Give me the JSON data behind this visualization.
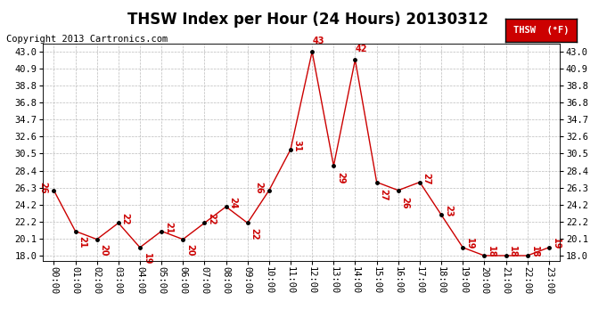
{
  "title": "THSW Index per Hour (24 Hours) 20130312",
  "copyright": "Copyright 2013 Cartronics.com",
  "legend_label": "THSW  (°F)",
  "x_labels": [
    "00:00",
    "01:00",
    "02:00",
    "03:00",
    "04:00",
    "05:00",
    "06:00",
    "07:00",
    "08:00",
    "09:00",
    "10:00",
    "11:00",
    "12:00",
    "13:00",
    "14:00",
    "15:00",
    "16:00",
    "17:00",
    "18:00",
    "19:00",
    "20:00",
    "21:00",
    "22:00",
    "23:00"
  ],
  "y_values": [
    26,
    21,
    20,
    22,
    19,
    21,
    20,
    22,
    24,
    22,
    26,
    31,
    43,
    29,
    42,
    27,
    26,
    27,
    23,
    19,
    18,
    18,
    18,
    19
  ],
  "y_labels": [
    18.0,
    20.1,
    22.2,
    24.2,
    26.3,
    28.4,
    30.5,
    32.6,
    34.7,
    36.8,
    38.8,
    40.9,
    43.0
  ],
  "ylim": [
    17.4,
    44.0
  ],
  "line_color": "#cc0000",
  "marker_color": "#000000",
  "label_color": "#cc0000",
  "bg_color": "#ffffff",
  "grid_color": "#bbbbbb",
  "legend_bg": "#cc0000",
  "legend_text_color": "#ffffff",
  "title_fontsize": 12,
  "copyright_fontsize": 7.5,
  "label_fontsize": 7,
  "tick_fontsize": 7.5
}
